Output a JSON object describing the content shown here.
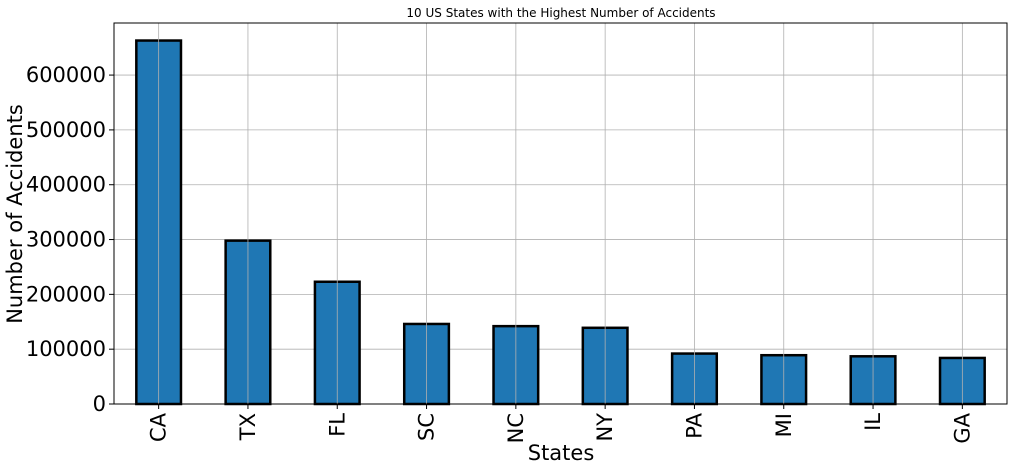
{
  "chart_data": {
    "type": "bar",
    "title": "10 US States with the Highest Number of Accidents",
    "xlabel": "States",
    "ylabel": "Number of Accidents",
    "categories": [
      "CA",
      "TX",
      "FL",
      "SC",
      "NC",
      "NY",
      "PA",
      "MI",
      "IL",
      "GA"
    ],
    "values": [
      663000,
      298000,
      223000,
      146000,
      142000,
      139000,
      92000,
      89000,
      87000,
      84000
    ],
    "ylim": [
      0,
      695000
    ],
    "yticks": [
      0,
      100000,
      200000,
      300000,
      400000,
      500000,
      600000
    ],
    "ytick_labels": [
      "0",
      "100000",
      "200000",
      "300000",
      "400000",
      "500000",
      "600000"
    ],
    "grid": true,
    "legend": "none",
    "bar_color": "#1f77b4",
    "edge_color": "#000000"
  }
}
